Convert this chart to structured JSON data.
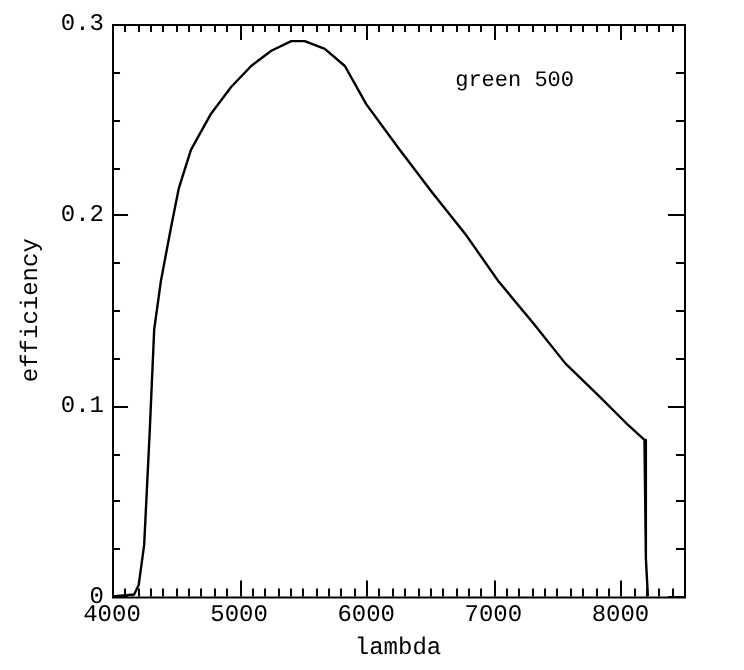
{
  "chart_data": {
    "type": "line",
    "xlabel": "lambda",
    "ylabel": "efficiency",
    "annotations": [
      "green 500"
    ],
    "color": "#000000",
    "marker": "none",
    "line_style": "solid",
    "grid": false,
    "legend": false,
    "x": [
      4000,
      4174,
      4210,
      4253,
      4295,
      4332,
      4384,
      4463,
      4526,
      4621,
      4779,
      4937,
      5095,
      5253,
      5411,
      5516,
      5674,
      5832,
      6000,
      6253,
      6516,
      6779,
      7042,
      7305,
      7568,
      7832,
      8042,
      8189,
      8200,
      8216
    ],
    "values": [
      0,
      0.001,
      0.006,
      0.027,
      0.084,
      0.14,
      0.165,
      0.193,
      0.214,
      0.234,
      0.253,
      0.267,
      0.278,
      0.286,
      0.291,
      0.291,
      0.287,
      0.278,
      0.258,
      0.235,
      0.212,
      0.19,
      0.165,
      0.144,
      0.122,
      0.105,
      0.091,
      0.082,
      0.02,
      0
    ],
    "xlim": [
      4000,
      8500
    ],
    "ylim": [
      0,
      0.3
    ],
    "xticks": [
      4000,
      {
        "value": 4100,
        "label": null
      },
      {
        "value": 4200,
        "label": null
      },
      {
        "value": 4300,
        "label": null
      },
      {
        "value": 4400,
        "label": null
      },
      {
        "value": 4500,
        "label": null
      },
      {
        "value": 4600,
        "label": null
      },
      {
        "value": 4700,
        "label": null
      },
      {
        "value": 4800,
        "label": null
      },
      {
        "value": 4900,
        "label": null
      },
      5000,
      {
        "value": 5100,
        "label": null
      },
      {
        "value": 5200,
        "label": null
      },
      {
        "value": 5300,
        "label": null
      },
      {
        "value": 5400,
        "label": null
      },
      {
        "value": 5500,
        "label": null
      },
      {
        "value": 5600,
        "label": null
      },
      {
        "value": 5700,
        "label": null
      },
      {
        "value": 5800,
        "label": null
      },
      {
        "value": 5900,
        "label": null
      },
      6000,
      {
        "value": 6100,
        "label": null
      },
      {
        "value": 6200,
        "label": null
      },
      {
        "value": 6300,
        "label": null
      },
      {
        "value": 6400,
        "label": null
      },
      {
        "value": 6500,
        "label": null
      },
      {
        "value": 6600,
        "label": null
      },
      {
        "value": 6700,
        "label": null
      },
      {
        "value": 6800,
        "label": null
      },
      {
        "value": 6900,
        "label": null
      },
      7000,
      {
        "value": 7100,
        "label": null
      },
      {
        "value": 7200,
        "label": null
      },
      {
        "value": 7300,
        "label": null
      },
      {
        "value": 7400,
        "label": null
      },
      {
        "value": 7500,
        "label": null
      },
      {
        "value": 7600,
        "label": null
      },
      {
        "value": 7700,
        "label": null
      },
      {
        "value": 7800,
        "label": null
      },
      {
        "value": 7900,
        "label": null
      },
      8000,
      {
        "value": 8100,
        "label": null
      },
      {
        "value": 8200,
        "label": null
      },
      {
        "value": 8300,
        "label": null
      },
      {
        "value": 8400,
        "label": null
      },
      {
        "value": 8500,
        "label": null
      }
    ],
    "yticks": [
      0,
      {
        "value": 0.025,
        "label": null
      },
      {
        "value": 0.05,
        "label": null
      },
      {
        "value": 0.075,
        "label": null
      },
      0.1,
      {
        "value": 0.125,
        "label": null
      },
      {
        "value": 0.15,
        "label": null
      },
      {
        "value": 0.175,
        "label": null
      },
      0.2,
      {
        "value": 0.225,
        "label": null
      },
      {
        "value": 0.25,
        "label": null
      },
      {
        "value": 0.275,
        "label": null
      },
      0.3
    ]
  }
}
